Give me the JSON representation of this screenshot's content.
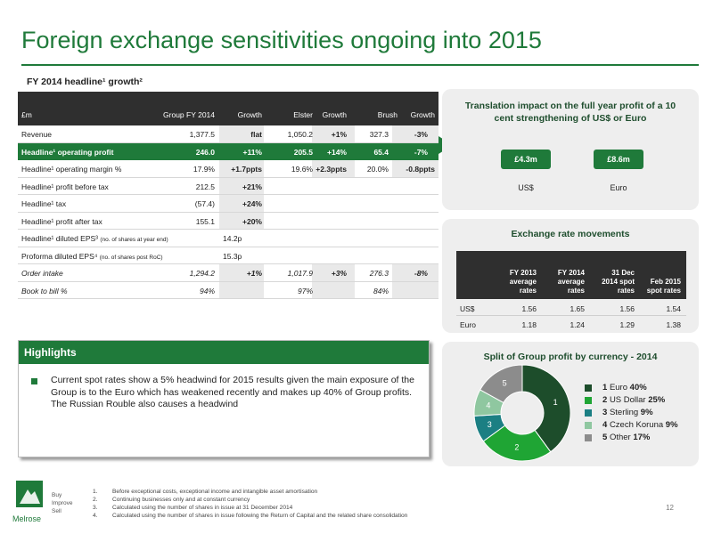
{
  "title": "Foreign exchange sensitivities ongoing into 2015",
  "subtitle": "FY 2014 headline¹ growth²",
  "table": {
    "headers": [
      "£m",
      "Group FY 2014",
      "Growth",
      "Elster",
      "Growth",
      "Brush",
      "Growth"
    ],
    "rows": [
      {
        "label": "Revenue",
        "group": "1,377.5",
        "g1": "flat",
        "elster": "1,050.2",
        "g2": "+1%",
        "brush": "327.3",
        "g3": "-3%"
      },
      {
        "label": "Headline¹ operating profit",
        "group": "246.0",
        "g1": "+11%",
        "elster": "205.5",
        "g2": "+14%",
        "brush": "65.4",
        "g3": "-7%"
      },
      {
        "label": "Headline¹ operating margin %",
        "group": "17.9%",
        "g1": "+1.7ppts",
        "elster": "19.6%",
        "g2": "+2.3ppts",
        "brush": "20.0%",
        "g3": "-0.8ppts"
      },
      {
        "label": "Headline¹ profit before tax",
        "group": "212.5",
        "g1": "+21%"
      },
      {
        "label": "Headline¹ tax",
        "group": "(57.4)",
        "g1": "+24%"
      },
      {
        "label": "Headline¹ profit after tax",
        "group": "155.1",
        "g1": "+20%"
      }
    ],
    "eps": [
      {
        "label": "Headline¹ diluted EPS³",
        "note": "(no. of shares at year end)",
        "value": "14.2p"
      },
      {
        "label": "Proforma diluted EPS⁴",
        "note": "(no. of shares post RoC)",
        "value": "15.3p"
      }
    ],
    "orders": [
      {
        "label": "Order intake",
        "group": "1,294.2",
        "g1": "+1%",
        "elster": "1,017.9",
        "g2": "+3%",
        "brush": "276.3",
        "g3": "-8%"
      },
      {
        "label": "Book to bill %",
        "group": "94%",
        "elster": "97%",
        "brush": "84%"
      }
    ]
  },
  "translation": {
    "title": "Translation impact on the full year profit of a 10 cent strengthening of US$ or Euro",
    "usd_value": "£4.3m",
    "eur_value": "£8.6m",
    "usd_label": "US$",
    "eur_label": "Euro"
  },
  "rates": {
    "title": "Exchange rate movements",
    "headers": [
      "FY 2013 average rates",
      "FY 2014 average rates",
      "31 Dec 2014 spot rates",
      "Feb 2015 spot rates"
    ],
    "rows": [
      {
        "ccy": "US$",
        "v": [
          "1.56",
          "1.65",
          "1.56",
          "1.54"
        ]
      },
      {
        "ccy": "Euro",
        "v": [
          "1.18",
          "1.24",
          "1.29",
          "1.38"
        ]
      }
    ]
  },
  "highlights": {
    "title": "Highlights",
    "text": "Current spot rates show a 5% headwind for 2015 results given the main exposure of the Group is to the Euro which has weakened recently and makes up 40% of Group profits. The Russian Rouble also causes a headwind"
  },
  "chart_data": {
    "type": "pie",
    "title": "Split of Group profit by currency - 2014",
    "categories": [
      "Euro",
      "US Dollar",
      "Sterling",
      "Czech Koruna",
      "Other"
    ],
    "numbers": [
      "1",
      "2",
      "3",
      "4",
      "5"
    ],
    "values": [
      40,
      25,
      9,
      9,
      17
    ],
    "value_labels": [
      "40%",
      "25%",
      "9%",
      "9%",
      "17%"
    ],
    "colors": [
      "#1d4d2b",
      "#1fa534",
      "#1b7f83",
      "#8fc7a0",
      "#8c8c8c"
    ],
    "donut": true,
    "legend": "right"
  },
  "footer": {
    "brand": "Melrose",
    "tagline": [
      "Buy",
      "Improve",
      "Sell"
    ],
    "notes": [
      "Before exceptional costs, exceptional income and intangible asset amortisation",
      "Continuing businesses only and at constant currency",
      "Calculated using the number of shares in issue at 31 December 2014",
      "Calculated using the number of shares in issue following the Return of Capital and the related share consolidation"
    ],
    "note_numbers": [
      "1.",
      "2.",
      "3.",
      "4."
    ],
    "page": "12"
  }
}
